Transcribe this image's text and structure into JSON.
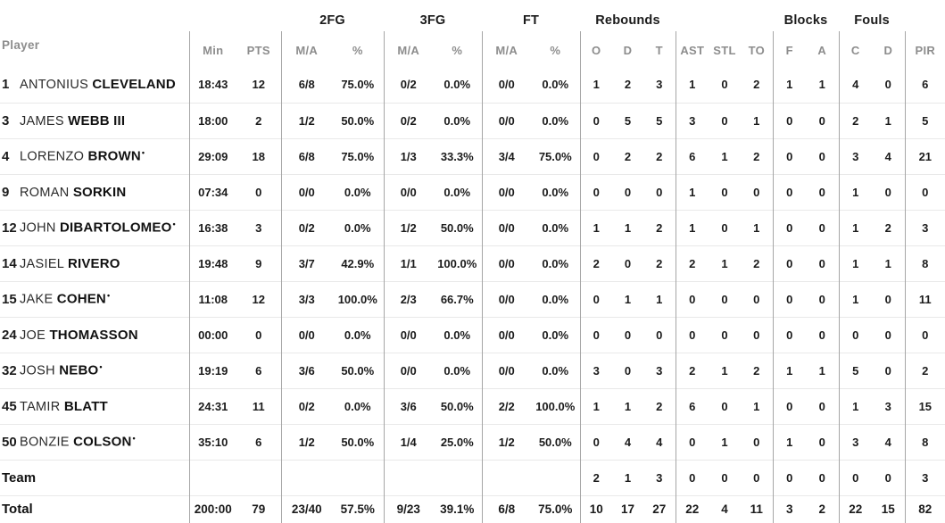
{
  "colors": {
    "background": "#ffffff",
    "text": "#1b1b1b",
    "muted_header": "#8d8d8d",
    "divider_vertical": "#a6a6a6",
    "divider_horizontal": "#e9e9e9"
  },
  "table": {
    "group_headers": {
      "fg2": "2FG",
      "fg3": "3FG",
      "ft": "FT",
      "rebounds": "Rebounds",
      "blocks": "Blocks",
      "fouls": "Fouls"
    },
    "sub_headers": {
      "player": "Player",
      "min": "Min",
      "pts": "PTS",
      "ma": "M/A",
      "pct": "%",
      "o": "O",
      "d": "D",
      "t": "T",
      "ast": "AST",
      "stl": "STL",
      "to": "TO",
      "f": "F",
      "a": "A",
      "c": "C",
      "d2": "D",
      "pir": "PIR"
    },
    "starter_mark": "•",
    "stat_keys": [
      "min",
      "pts",
      "fg2-ma",
      "fg2-pct",
      "fg3-ma",
      "fg3-pct",
      "ft-ma",
      "ft-pct",
      "reb-o",
      "reb-d",
      "reb-t",
      "ast",
      "stl",
      "to",
      "blk-f",
      "blk-a",
      "foul-c",
      "foul-d",
      "pir"
    ],
    "rows": [
      {
        "type": "player",
        "number": "1",
        "first": "ANTONIUS",
        "last": "CLEVELAND",
        "starter": false,
        "stats": [
          "18:43",
          "12",
          "6/8",
          "75.0%",
          "0/2",
          "0.0%",
          "0/0",
          "0.0%",
          "1",
          "2",
          "3",
          "1",
          "0",
          "2",
          "1",
          "1",
          "4",
          "0",
          "6"
        ]
      },
      {
        "type": "player",
        "number": "3",
        "first": "JAMES",
        "last": "WEBB III",
        "starter": false,
        "stats": [
          "18:00",
          "2",
          "1/2",
          "50.0%",
          "0/2",
          "0.0%",
          "0/0",
          "0.0%",
          "0",
          "5",
          "5",
          "3",
          "0",
          "1",
          "0",
          "0",
          "2",
          "1",
          "5"
        ]
      },
      {
        "type": "player",
        "number": "4",
        "first": "LORENZO",
        "last": "BROWN",
        "starter": true,
        "stats": [
          "29:09",
          "18",
          "6/8",
          "75.0%",
          "1/3",
          "33.3%",
          "3/4",
          "75.0%",
          "0",
          "2",
          "2",
          "6",
          "1",
          "2",
          "0",
          "0",
          "3",
          "4",
          "21"
        ]
      },
      {
        "type": "player",
        "number": "9",
        "first": "ROMAN",
        "last": "SORKIN",
        "starter": false,
        "stats": [
          "07:34",
          "0",
          "0/0",
          "0.0%",
          "0/0",
          "0.0%",
          "0/0",
          "0.0%",
          "0",
          "0",
          "0",
          "1",
          "0",
          "0",
          "0",
          "0",
          "1",
          "0",
          "0"
        ]
      },
      {
        "type": "player",
        "number": "12",
        "first": "JOHN",
        "last": "DIBARTOLOMEO",
        "starter": true,
        "stats": [
          "16:38",
          "3",
          "0/2",
          "0.0%",
          "1/2",
          "50.0%",
          "0/0",
          "0.0%",
          "1",
          "1",
          "2",
          "1",
          "0",
          "1",
          "0",
          "0",
          "1",
          "2",
          "3"
        ]
      },
      {
        "type": "player",
        "number": "14",
        "first": "JASIEL",
        "last": "RIVERO",
        "starter": false,
        "stats": [
          "19:48",
          "9",
          "3/7",
          "42.9%",
          "1/1",
          "100.0%",
          "0/0",
          "0.0%",
          "2",
          "0",
          "2",
          "2",
          "1",
          "2",
          "0",
          "0",
          "1",
          "1",
          "8"
        ]
      },
      {
        "type": "player",
        "number": "15",
        "first": "JAKE",
        "last": "COHEN",
        "starter": true,
        "stats": [
          "11:08",
          "12",
          "3/3",
          "100.0%",
          "2/3",
          "66.7%",
          "0/0",
          "0.0%",
          "0",
          "1",
          "1",
          "0",
          "0",
          "0",
          "0",
          "0",
          "1",
          "0",
          "11"
        ]
      },
      {
        "type": "player",
        "number": "24",
        "first": "JOE",
        "last": "THOMASSON",
        "starter": false,
        "stats": [
          "00:00",
          "0",
          "0/0",
          "0.0%",
          "0/0",
          "0.0%",
          "0/0",
          "0.0%",
          "0",
          "0",
          "0",
          "0",
          "0",
          "0",
          "0",
          "0",
          "0",
          "0",
          "0"
        ]
      },
      {
        "type": "player",
        "number": "32",
        "first": "JOSH",
        "last": "NEBO",
        "starter": true,
        "stats": [
          "19:19",
          "6",
          "3/6",
          "50.0%",
          "0/0",
          "0.0%",
          "0/0",
          "0.0%",
          "3",
          "0",
          "3",
          "2",
          "1",
          "2",
          "1",
          "1",
          "5",
          "0",
          "2"
        ]
      },
      {
        "type": "player",
        "number": "45",
        "first": "TAMIR",
        "last": "BLATT",
        "starter": false,
        "stats": [
          "24:31",
          "11",
          "0/2",
          "0.0%",
          "3/6",
          "50.0%",
          "2/2",
          "100.0%",
          "1",
          "1",
          "2",
          "6",
          "0",
          "1",
          "0",
          "0",
          "1",
          "3",
          "15"
        ]
      },
      {
        "type": "player",
        "number": "50",
        "first": "BONZIE",
        "last": "COLSON",
        "starter": true,
        "stats": [
          "35:10",
          "6",
          "1/2",
          "50.0%",
          "1/4",
          "25.0%",
          "1/2",
          "50.0%",
          "0",
          "4",
          "4",
          "0",
          "1",
          "0",
          "1",
          "0",
          "3",
          "4",
          "8"
        ]
      },
      {
        "type": "team",
        "label": "Team",
        "stats": [
          "",
          "",
          "",
          "",
          "",
          "",
          "",
          "",
          "2",
          "1",
          "3",
          "0",
          "0",
          "0",
          "0",
          "0",
          "0",
          "0",
          "3"
        ]
      },
      {
        "type": "total",
        "label": "Total",
        "stats": [
          "200:00",
          "79",
          "23/40",
          "57.5%",
          "9/23",
          "39.1%",
          "6/8",
          "75.0%",
          "10",
          "17",
          "27",
          "22",
          "4",
          "11",
          "3",
          "2",
          "22",
          "15",
          "82"
        ]
      }
    ]
  }
}
